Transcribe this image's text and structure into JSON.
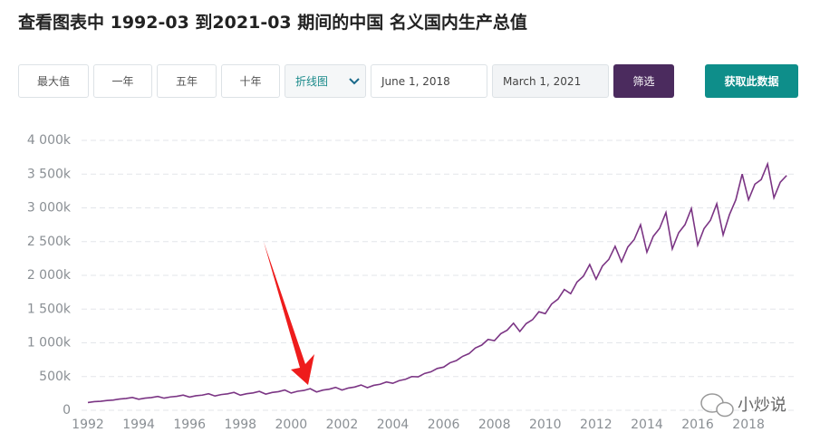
{
  "title": "查看图表中 1992-03 到2021-03 期间的中国 名义国内生产总值",
  "controls": {
    "range_buttons": [
      "最大值",
      "一年",
      "五年",
      "十年"
    ],
    "chart_select": "折线图",
    "start_date": "June 1, 2018",
    "end_date": "March 1, 2021",
    "filter_button": "筛选",
    "download_button": "获取此数据"
  },
  "watermark": "小炒说",
  "chart_data": {
    "type": "line",
    "color": "#7b3584",
    "grid": true,
    "x": [
      1992,
      1992.25,
      1992.5,
      1992.75,
      1993,
      1993.25,
      1993.5,
      1993.75,
      1994,
      1994.25,
      1994.5,
      1994.75,
      1995,
      1995.25,
      1995.5,
      1995.75,
      1996,
      1996.25,
      1996.5,
      1996.75,
      1997,
      1997.25,
      1997.5,
      1997.75,
      1998,
      1998.25,
      1998.5,
      1998.75,
      1999,
      1999.25,
      1999.5,
      1999.75,
      2000,
      2000.25,
      2000.5,
      2000.75,
      2001,
      2001.25,
      2001.5,
      2001.75,
      2002,
      2002.25,
      2002.5,
      2002.75,
      2003,
      2003.25,
      2003.5,
      2003.75,
      2004,
      2004.25,
      2004.5,
      2004.75,
      2005,
      2005.25,
      2005.5,
      2005.75,
      2006,
      2006.25,
      2006.5,
      2006.75,
      2007,
      2007.25,
      2007.5,
      2007.75,
      2008,
      2008.25,
      2008.5,
      2008.75,
      2009,
      2009.25,
      2009.5,
      2009.75,
      2010,
      2010.25,
      2010.5,
      2010.75,
      2011,
      2011.25,
      2011.5,
      2011.75,
      2012,
      2012.25,
      2012.5,
      2012.75,
      2013,
      2013.25,
      2013.5,
      2013.75,
      2014,
      2014.25,
      2014.5,
      2014.75,
      2015,
      2015.25,
      2015.5,
      2015.75,
      2016,
      2016.25,
      2016.5,
      2016.75,
      2017,
      2017.25,
      2017.5,
      2017.75,
      2018,
      2018.25,
      2018.5,
      2018.75,
      2019,
      2019.25,
      2019.5
    ],
    "values": [
      115000,
      128000,
      133000,
      145000,
      152000,
      167000,
      175000,
      190000,
      164000,
      180000,
      189000,
      205000,
      180000,
      198000,
      207000,
      225000,
      196000,
      216000,
      225000,
      245000,
      212000,
      233000,
      244000,
      265000,
      224000,
      246000,
      258000,
      280000,
      240000,
      264000,
      276000,
      300000,
      256000,
      282000,
      294000,
      320000,
      272000,
      299000,
      313000,
      340000,
      300000,
      330000,
      345000,
      375000,
      336000,
      370000,
      386000,
      420000,
      400000,
      440000,
      460000,
      500000,
      496000,
      546000,
      570000,
      620000,
      640000,
      704000,
      736000,
      800000,
      840000,
      924000,
      966000,
      1050000,
      1032000,
      1135000,
      1187000,
      1290000,
      1168000,
      1285000,
      1343000,
      1460000,
      1432000,
      1575000,
      1647000,
      1790000,
      1728000,
      1901000,
      1987000,
      2160000,
      1944000,
      2138000,
      2236000,
      2430000,
      2200000,
      2420000,
      2530000,
      2750000,
      2344000,
      2578000,
      2696000,
      2930000,
      2392000,
      2631000,
      2751000,
      2990000,
      2448000,
      2693000,
      2815000,
      3060000,
      2600000,
      2900000,
      3120000,
      3500000,
      3120000,
      3350000,
      3420000,
      3650000,
      3150000,
      3380000,
      3480000
    ],
    "xlim": [
      1992,
      2019.85
    ],
    "xticks": [
      1992,
      1994,
      1996,
      1998,
      2000,
      2002,
      2004,
      2006,
      2008,
      2010,
      2012,
      2014,
      2016,
      2018
    ],
    "ylim": [
      0,
      4000000
    ],
    "yticks": [
      0,
      {
        "value": 500000,
        "label": "500k"
      },
      {
        "value": 1000000,
        "label": "1 000k"
      },
      {
        "value": 1500000,
        "label": "1 500k"
      },
      {
        "value": 2000000,
        "label": "2 000k"
      },
      {
        "value": 2500000,
        "label": "2 500k"
      },
      {
        "value": 3000000,
        "label": "3 000k"
      },
      {
        "value": 3500000,
        "label": "3 500k"
      },
      {
        "value": 4000000,
        "label": "4 000k"
      }
    ]
  }
}
